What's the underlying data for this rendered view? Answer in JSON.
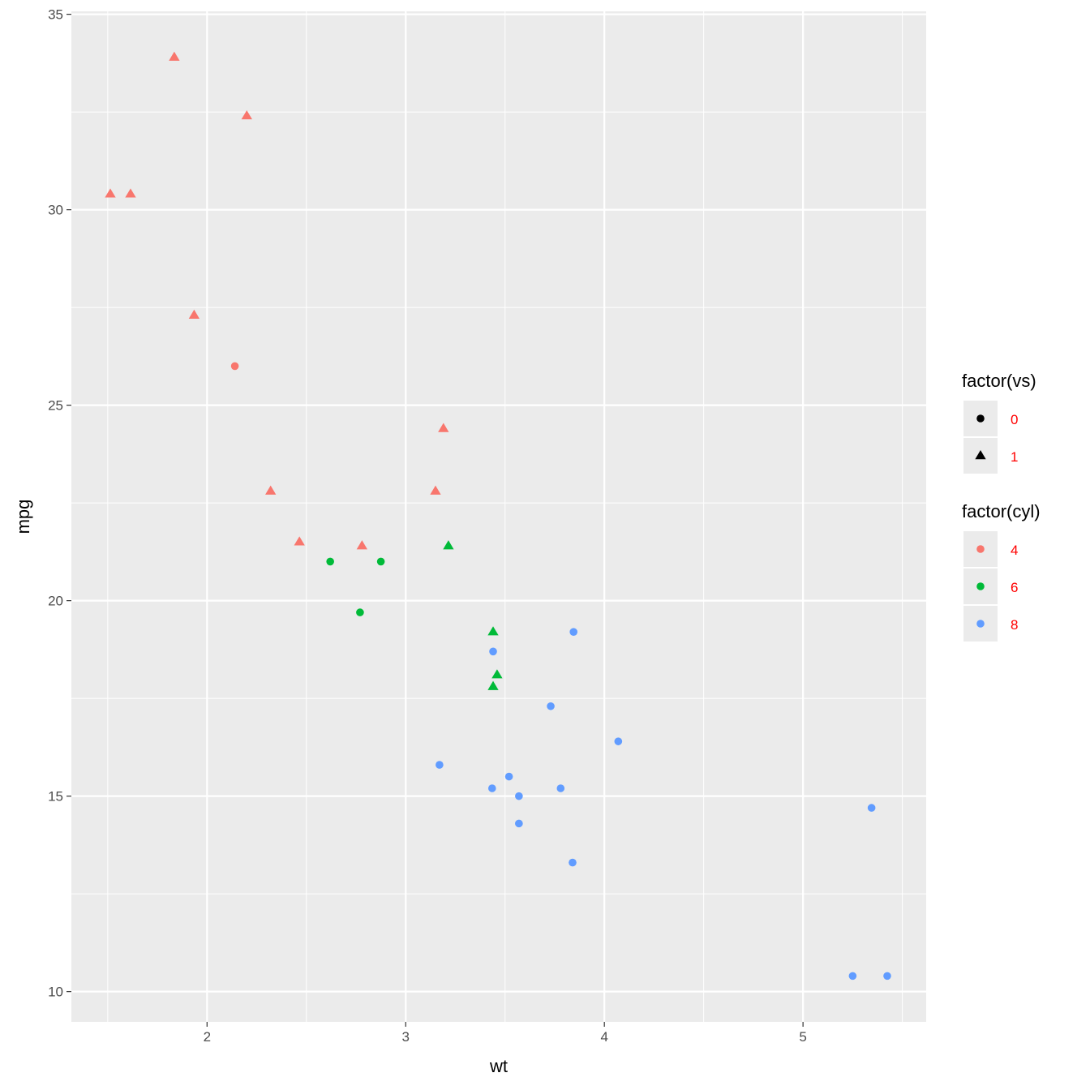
{
  "chart_data": {
    "type": "scatter",
    "title": "",
    "xlabel": "wt",
    "ylabel": "mpg",
    "xlim": [
      1.317,
      5.62
    ],
    "ylim": [
      9.225,
      35.075
    ],
    "xticks": [
      2,
      3,
      4,
      5
    ],
    "yticks": [
      10,
      15,
      20,
      25,
      30,
      35
    ],
    "xtick_labels": [
      "2",
      "3",
      "4",
      "5"
    ],
    "ytick_labels": [
      "10",
      "15",
      "20",
      "25",
      "30",
      "35"
    ],
    "grid": true,
    "legend_placement": "right",
    "legends": [
      {
        "title": "factor(vs)",
        "entries": [
          {
            "label": "0",
            "shape": "circle"
          },
          {
            "label": "1",
            "shape": "triangle"
          }
        ]
      },
      {
        "title": "factor(cyl)",
        "entries": [
          {
            "label": "4",
            "color": "#F8766D"
          },
          {
            "label": "6",
            "color": "#00BA38"
          },
          {
            "label": "8",
            "color": "#619CFF"
          }
        ]
      }
    ],
    "colors": {
      "4": "#F8766D",
      "6": "#00BA38",
      "8": "#619CFF"
    },
    "points": [
      {
        "wt": 2.62,
        "mpg": 21.0,
        "cyl": "6",
        "vs": "0"
      },
      {
        "wt": 2.875,
        "mpg": 21.0,
        "cyl": "6",
        "vs": "0"
      },
      {
        "wt": 2.32,
        "mpg": 22.8,
        "cyl": "4",
        "vs": "1"
      },
      {
        "wt": 3.215,
        "mpg": 21.4,
        "cyl": "6",
        "vs": "1"
      },
      {
        "wt": 3.44,
        "mpg": 18.7,
        "cyl": "8",
        "vs": "0"
      },
      {
        "wt": 3.46,
        "mpg": 18.1,
        "cyl": "6",
        "vs": "1"
      },
      {
        "wt": 3.57,
        "mpg": 14.3,
        "cyl": "8",
        "vs": "0"
      },
      {
        "wt": 3.19,
        "mpg": 24.4,
        "cyl": "4",
        "vs": "1"
      },
      {
        "wt": 3.15,
        "mpg": 22.8,
        "cyl": "4",
        "vs": "1"
      },
      {
        "wt": 3.44,
        "mpg": 19.2,
        "cyl": "6",
        "vs": "1"
      },
      {
        "wt": 3.44,
        "mpg": 17.8,
        "cyl": "6",
        "vs": "1"
      },
      {
        "wt": 4.07,
        "mpg": 16.4,
        "cyl": "8",
        "vs": "0"
      },
      {
        "wt": 3.73,
        "mpg": 17.3,
        "cyl": "8",
        "vs": "0"
      },
      {
        "wt": 3.78,
        "mpg": 15.2,
        "cyl": "8",
        "vs": "0"
      },
      {
        "wt": 5.25,
        "mpg": 10.4,
        "cyl": "8",
        "vs": "0"
      },
      {
        "wt": 5.424,
        "mpg": 10.4,
        "cyl": "8",
        "vs": "0"
      },
      {
        "wt": 5.345,
        "mpg": 14.7,
        "cyl": "8",
        "vs": "0"
      },
      {
        "wt": 2.2,
        "mpg": 32.4,
        "cyl": "4",
        "vs": "1"
      },
      {
        "wt": 1.615,
        "mpg": 30.4,
        "cyl": "4",
        "vs": "1"
      },
      {
        "wt": 1.835,
        "mpg": 33.9,
        "cyl": "4",
        "vs": "1"
      },
      {
        "wt": 2.465,
        "mpg": 21.5,
        "cyl": "4",
        "vs": "1"
      },
      {
        "wt": 3.52,
        "mpg": 15.5,
        "cyl": "8",
        "vs": "0"
      },
      {
        "wt": 3.435,
        "mpg": 15.2,
        "cyl": "8",
        "vs": "0"
      },
      {
        "wt": 3.84,
        "mpg": 13.3,
        "cyl": "8",
        "vs": "0"
      },
      {
        "wt": 3.845,
        "mpg": 19.2,
        "cyl": "8",
        "vs": "0"
      },
      {
        "wt": 1.935,
        "mpg": 27.3,
        "cyl": "4",
        "vs": "1"
      },
      {
        "wt": 2.14,
        "mpg": 26.0,
        "cyl": "4",
        "vs": "0"
      },
      {
        "wt": 1.513,
        "mpg": 30.4,
        "cyl": "4",
        "vs": "1"
      },
      {
        "wt": 3.17,
        "mpg": 15.8,
        "cyl": "8",
        "vs": "0"
      },
      {
        "wt": 2.77,
        "mpg": 19.7,
        "cyl": "6",
        "vs": "0"
      },
      {
        "wt": 3.57,
        "mpg": 15.0,
        "cyl": "8",
        "vs": "0"
      },
      {
        "wt": 2.78,
        "mpg": 21.4,
        "cyl": "4",
        "vs": "1"
      }
    ]
  }
}
